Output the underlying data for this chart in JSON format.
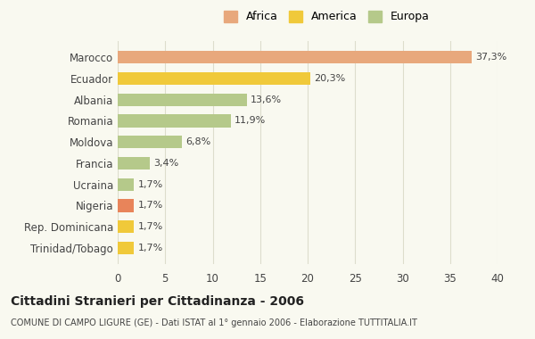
{
  "categories": [
    "Trinidad/Tobago",
    "Rep. Dominicana",
    "Nigeria",
    "Ucraina",
    "Francia",
    "Moldova",
    "Romania",
    "Albania",
    "Ecuador",
    "Marocco"
  ],
  "values": [
    1.7,
    1.7,
    1.7,
    1.7,
    3.4,
    6.8,
    11.9,
    13.6,
    20.3,
    37.3
  ],
  "colors": [
    "#f0c93a",
    "#f0c93a",
    "#e8845a",
    "#b5c98a",
    "#b5c98a",
    "#b5c98a",
    "#b5c98a",
    "#b5c98a",
    "#f0c93a",
    "#e8a87c"
  ],
  "labels": [
    "1,7%",
    "1,7%",
    "1,7%",
    "1,7%",
    "3,4%",
    "6,8%",
    "11,9%",
    "13,6%",
    "20,3%",
    "37,3%"
  ],
  "legend_labels": [
    "Africa",
    "America",
    "Europa"
  ],
  "legend_colors": [
    "#e8a87c",
    "#f0c93a",
    "#b5c98a"
  ],
  "title": "Cittadini Stranieri per Cittadinanza - 2006",
  "subtitle": "COMUNE DI CAMPO LIGURE (GE) - Dati ISTAT al 1° gennaio 2006 - Elaborazione TUTTITALIA.IT",
  "xlim": [
    0,
    40
  ],
  "xticks": [
    0,
    5,
    10,
    15,
    20,
    25,
    30,
    35,
    40
  ],
  "bg_color": "#f9f9f0",
  "plot_bg_color": "#f9f9f0",
  "grid_color": "#ddddcc"
}
